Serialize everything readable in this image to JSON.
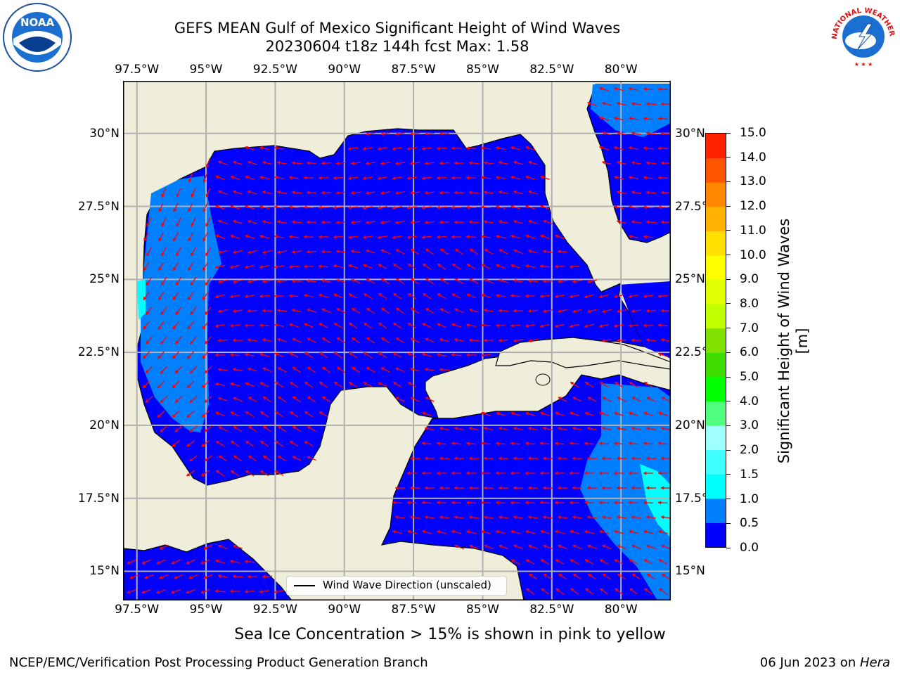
{
  "title": {
    "line1": "GEFS MEAN Gulf of Mexico Significant Height of Wind Waves",
    "line2": "20230604 t18z 144h fcst   Max: 1.58"
  },
  "logos": {
    "noaa": {
      "text": "NOAA",
      "ring_text": "NATIONAL OCEANIC AND ATMOSPHERIC ADMINISTRATION · U.S. DEPARTMENT OF COMMERCE"
    },
    "nws": {
      "ring_text": "NATIONAL WEATHER SERVICE"
    }
  },
  "map": {
    "lon_ticks": [
      "97.5°W",
      "95°W",
      "92.5°W",
      "90°W",
      "87.5°W",
      "85°W",
      "82.5°W",
      "80°W"
    ],
    "lat_ticks": [
      "30°N",
      "27.5°N",
      "25°N",
      "22.5°N",
      "20°N",
      "17.5°N",
      "15°N"
    ],
    "lon_extent": [
      -98,
      -78.2
    ],
    "lat_extent": [
      14,
      31.8
    ],
    "land_color": "#efeedb",
    "ocean_color": "#0000ff",
    "arrow_color": "#ff0000",
    "gridlines": true
  },
  "legend": {
    "label": "Wind Wave Direction (unscaled)"
  },
  "colorbar": {
    "label": "Significant Height of Wind Waves [m]",
    "ticks": [
      "0.0",
      "0.5",
      "1.0",
      "1.5",
      "2.0",
      "3.0",
      "4.0",
      "5.0",
      "6.0",
      "7.0",
      "8.0",
      "9.0",
      "10.0",
      "11.0",
      "12.0",
      "13.0",
      "14.0",
      "15.0"
    ],
    "colors": [
      "#0000ff",
      "#0080ff",
      "#00ffff",
      "#40ffff",
      "#a0ffff",
      "#50ff80",
      "#00ff00",
      "#40dd00",
      "#80e000",
      "#c0ff00",
      "#e0ff00",
      "#ffff00",
      "#ffe000",
      "#ffb000",
      "#ff8800",
      "#ff5500",
      "#ff2200",
      "#ff0000"
    ]
  },
  "subtitle": "Sea Ice Concentration > 15% is shown in pink to yellow",
  "footer": {
    "left": "NCEP/EMC/Verification Post Processing Product Generation Branch",
    "right_prefix": "06 Jun 2023 on ",
    "right_host": "Hera"
  }
}
